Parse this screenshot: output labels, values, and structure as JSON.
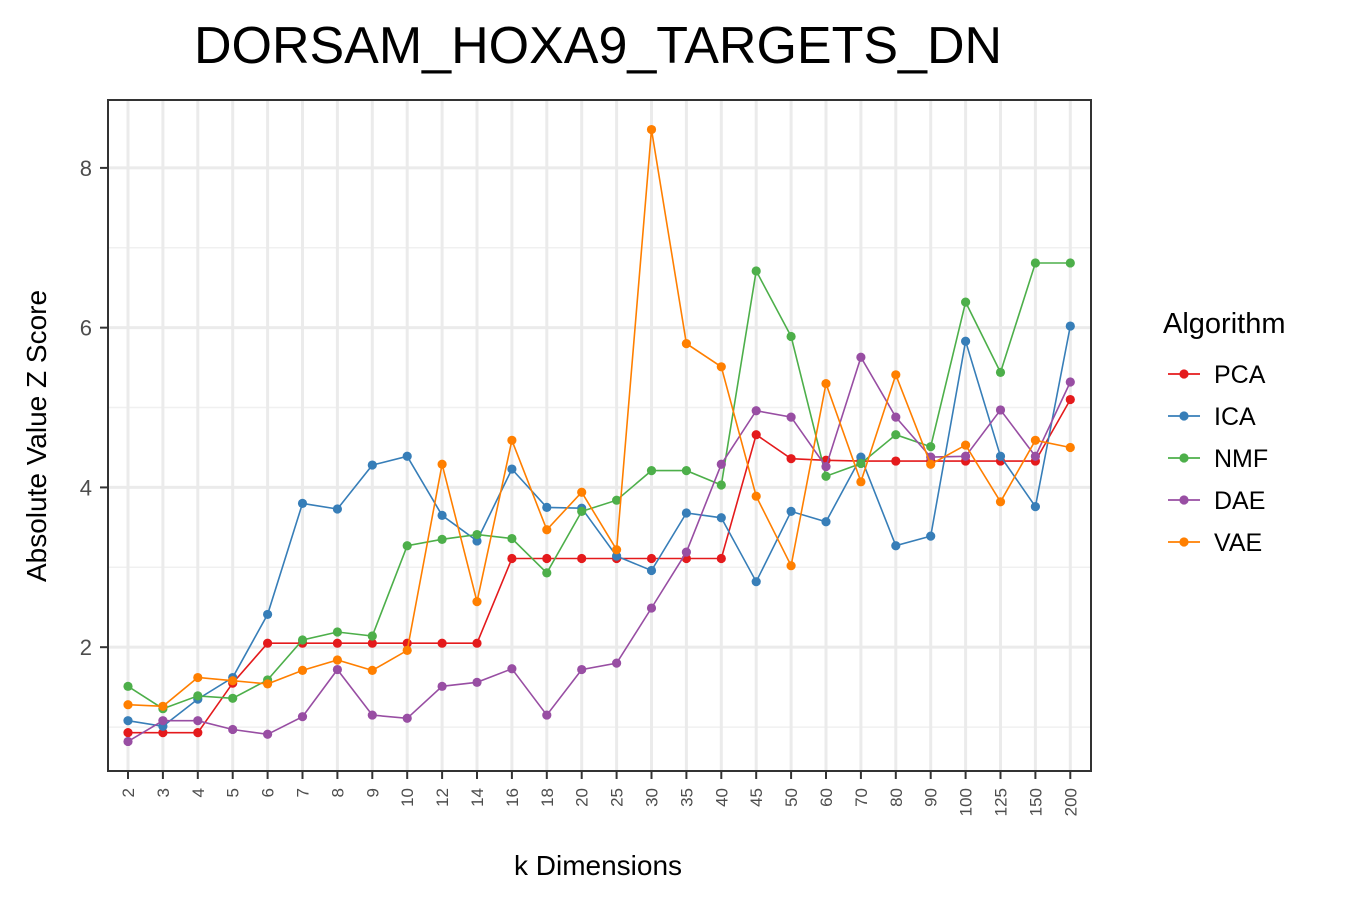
{
  "chart_data": {
    "type": "line",
    "title": "DORSAM_HOXA9_TARGETS_DN",
    "xlabel": "k Dimensions",
    "ylabel": "Absolute Value Z Score",
    "categories": [
      "2",
      "3",
      "4",
      "5",
      "6",
      "7",
      "8",
      "9",
      "10",
      "12",
      "14",
      "16",
      "18",
      "20",
      "25",
      "30",
      "35",
      "40",
      "45",
      "50",
      "60",
      "70",
      "80",
      "90",
      "100",
      "125",
      "150",
      "200"
    ],
    "ylim": [
      0.45,
      8.85
    ],
    "yticks": [
      2,
      4,
      6,
      8
    ],
    "grid": true,
    "legend": {
      "title": "Algorithm",
      "position": "right"
    },
    "series": [
      {
        "name": "PCA",
        "color": "#e41a1c",
        "values": [
          0.93,
          0.93,
          0.93,
          1.55,
          2.05,
          2.05,
          2.05,
          2.05,
          2.05,
          2.05,
          2.05,
          3.11,
          3.11,
          3.11,
          3.11,
          3.11,
          3.11,
          3.11,
          4.66,
          4.36,
          4.34,
          4.33,
          4.33,
          4.33,
          4.33,
          4.33,
          4.33,
          5.1
        ]
      },
      {
        "name": "ICA",
        "color": "#377eb8",
        "values": [
          1.08,
          1.01,
          1.35,
          1.62,
          2.41,
          3.8,
          3.73,
          4.28,
          4.39,
          3.65,
          3.33,
          4.23,
          3.75,
          3.74,
          3.14,
          2.96,
          3.68,
          3.62,
          2.82,
          3.7,
          3.57,
          4.38,
          3.27,
          3.39,
          5.83,
          4.39,
          3.76,
          6.02
        ]
      },
      {
        "name": "NMF",
        "color": "#4daf4a",
        "values": [
          1.51,
          1.23,
          1.39,
          1.36,
          1.59,
          2.09,
          2.19,
          2.14,
          3.27,
          3.35,
          3.41,
          3.36,
          2.93,
          3.7,
          3.84,
          4.21,
          4.21,
          4.03,
          6.71,
          5.89,
          4.14,
          4.3,
          4.66,
          4.51,
          6.32,
          5.44,
          6.81,
          6.81
        ]
      },
      {
        "name": "DAE",
        "color": "#984ea3",
        "values": [
          0.82,
          1.08,
          1.08,
          0.97,
          0.91,
          1.13,
          1.72,
          1.15,
          1.11,
          1.51,
          1.56,
          1.73,
          1.15,
          1.72,
          1.8,
          2.49,
          3.19,
          4.29,
          4.96,
          4.88,
          4.26,
          5.63,
          4.88,
          4.38,
          4.39,
          4.97,
          4.39,
          5.32
        ]
      },
      {
        "name": "VAE",
        "color": "#ff7f00",
        "values": [
          1.28,
          1.26,
          1.62,
          1.58,
          1.54,
          1.71,
          1.84,
          1.71,
          1.96,
          4.29,
          2.57,
          4.59,
          3.47,
          3.94,
          3.22,
          8.48,
          5.8,
          5.51,
          3.89,
          3.02,
          5.3,
          4.07,
          5.41,
          4.29,
          4.53,
          3.82,
          4.59,
          4.5
        ]
      }
    ]
  }
}
